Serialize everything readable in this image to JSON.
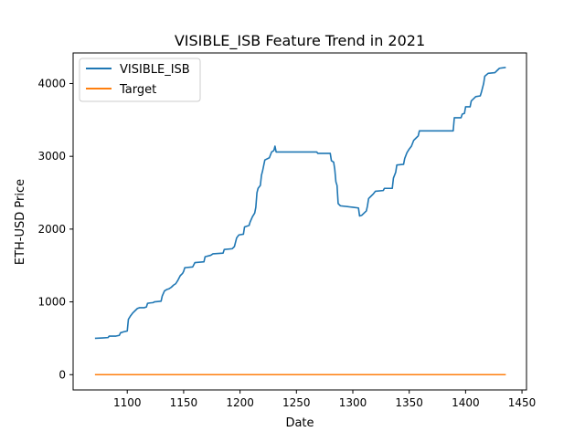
{
  "colors": {
    "series_1": "#1f77b4",
    "series_2": "#ff7f0e",
    "axes": "#000000",
    "legend_border": "#cccccc"
  },
  "chart_data": {
    "type": "line",
    "title": "VISIBLE_ISB Feature Trend in 2021",
    "xlabel": "Date",
    "ylabel": "ETH-USD Price",
    "xlim": [
      1052,
      1454
    ],
    "ylim": [
      -210,
      4420
    ],
    "xticks": [
      1100,
      1150,
      1200,
      1250,
      1300,
      1350,
      1400,
      1450
    ],
    "yticks": [
      0,
      1000,
      2000,
      3000,
      4000
    ],
    "grid": false,
    "legend_position": "upper-left",
    "series": [
      {
        "name": "VISIBLE_ISB",
        "points": [
          [
            1072,
            500
          ],
          [
            1078,
            505
          ],
          [
            1083,
            510
          ],
          [
            1084,
            530
          ],
          [
            1090,
            530
          ],
          [
            1093,
            540
          ],
          [
            1094,
            575
          ],
          [
            1097,
            590
          ],
          [
            1100,
            600
          ],
          [
            1101,
            760
          ],
          [
            1103,
            810
          ],
          [
            1105,
            850
          ],
          [
            1107,
            880
          ],
          [
            1109,
            910
          ],
          [
            1111,
            920
          ],
          [
            1115,
            920
          ],
          [
            1117,
            930
          ],
          [
            1118,
            980
          ],
          [
            1120,
            985
          ],
          [
            1123,
            990
          ],
          [
            1124,
            1000
          ],
          [
            1130,
            1010
          ],
          [
            1131,
            1080
          ],
          [
            1133,
            1150
          ],
          [
            1135,
            1170
          ],
          [
            1137,
            1180
          ],
          [
            1139,
            1200
          ],
          [
            1141,
            1230
          ],
          [
            1143,
            1250
          ],
          [
            1145,
            1300
          ],
          [
            1147,
            1360
          ],
          [
            1149,
            1390
          ],
          [
            1150,
            1420
          ],
          [
            1151,
            1470
          ],
          [
            1158,
            1480
          ],
          [
            1160,
            1540
          ],
          [
            1168,
            1550
          ],
          [
            1169,
            1620
          ],
          [
            1174,
            1640
          ],
          [
            1176,
            1660
          ],
          [
            1185,
            1670
          ],
          [
            1186,
            1720
          ],
          [
            1193,
            1730
          ],
          [
            1195,
            1760
          ],
          [
            1197,
            1880
          ],
          [
            1199,
            1920
          ],
          [
            1203,
            1930
          ],
          [
            1204,
            2030
          ],
          [
            1208,
            2050
          ],
          [
            1209,
            2100
          ],
          [
            1211,
            2170
          ],
          [
            1213,
            2220
          ],
          [
            1214,
            2300
          ],
          [
            1215,
            2500
          ],
          [
            1216,
            2560
          ],
          [
            1218,
            2600
          ],
          [
            1219,
            2740
          ],
          [
            1220,
            2800
          ],
          [
            1222,
            2950
          ],
          [
            1226,
            2980
          ],
          [
            1228,
            3060
          ],
          [
            1230,
            3080
          ],
          [
            1231,
            3140
          ],
          [
            1232,
            3060
          ],
          [
            1250,
            3060
          ],
          [
            1268,
            3060
          ],
          [
            1269,
            3040
          ],
          [
            1280,
            3040
          ],
          [
            1281,
            2940
          ],
          [
            1283,
            2920
          ],
          [
            1284,
            2820
          ],
          [
            1285,
            2650
          ],
          [
            1286,
            2600
          ],
          [
            1287,
            2350
          ],
          [
            1289,
            2320
          ],
          [
            1300,
            2300
          ],
          [
            1305,
            2290
          ],
          [
            1306,
            2180
          ],
          [
            1308,
            2190
          ],
          [
            1310,
            2220
          ],
          [
            1312,
            2250
          ],
          [
            1313,
            2320
          ],
          [
            1314,
            2420
          ],
          [
            1316,
            2450
          ],
          [
            1318,
            2480
          ],
          [
            1320,
            2520
          ],
          [
            1327,
            2530
          ],
          [
            1328,
            2560
          ],
          [
            1335,
            2560
          ],
          [
            1336,
            2700
          ],
          [
            1338,
            2780
          ],
          [
            1339,
            2880
          ],
          [
            1345,
            2890
          ],
          [
            1346,
            2970
          ],
          [
            1348,
            3050
          ],
          [
            1350,
            3100
          ],
          [
            1352,
            3140
          ],
          [
            1354,
            3220
          ],
          [
            1356,
            3250
          ],
          [
            1358,
            3280
          ],
          [
            1359,
            3350
          ],
          [
            1375,
            3350
          ],
          [
            1389,
            3350
          ],
          [
            1390,
            3530
          ],
          [
            1396,
            3530
          ],
          [
            1397,
            3580
          ],
          [
            1399,
            3590
          ],
          [
            1400,
            3680
          ],
          [
            1404,
            3680
          ],
          [
            1405,
            3760
          ],
          [
            1407,
            3790
          ],
          [
            1409,
            3820
          ],
          [
            1413,
            3830
          ],
          [
            1414,
            3880
          ],
          [
            1416,
            4000
          ],
          [
            1417,
            4100
          ],
          [
            1420,
            4140
          ],
          [
            1426,
            4150
          ],
          [
            1428,
            4180
          ],
          [
            1430,
            4210
          ],
          [
            1435,
            4220
          ]
        ]
      },
      {
        "name": "Target",
        "points": [
          [
            1072,
            0
          ],
          [
            1435,
            0
          ]
        ]
      }
    ]
  }
}
